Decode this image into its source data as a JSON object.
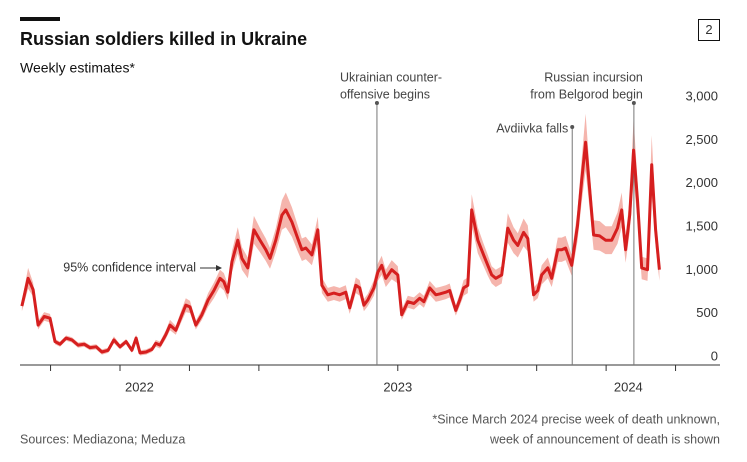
{
  "chart_data": {
    "type": "line",
    "title": "Russian soldiers killed in Ukraine",
    "subtitle": "Weekly estimates*",
    "badge": "2",
    "x": [
      2022.147,
      2022.169,
      2022.187,
      2022.205,
      2022.227,
      2022.248,
      2022.266,
      2022.284,
      2022.306,
      2022.327,
      2022.349,
      2022.371,
      2022.392,
      2022.414,
      2022.435,
      2022.457,
      2022.478,
      2022.5,
      2022.522,
      2022.543,
      2022.558,
      2022.572,
      2022.594,
      2022.615,
      2022.629,
      2022.644,
      2022.665,
      2022.68,
      2022.701,
      2022.723,
      2022.737,
      2022.752,
      2022.773,
      2022.795,
      2022.817,
      2022.838,
      2022.86,
      2022.874,
      2022.888,
      2022.903,
      2022.924,
      2022.939,
      2022.96,
      2022.982,
      2023.004,
      2023.025,
      2023.04,
      2023.061,
      2023.083,
      2023.097,
      2023.119,
      2023.14,
      2023.155,
      2023.169,
      2023.191,
      2023.212,
      2023.227,
      2023.248,
      2023.27,
      2023.291,
      2023.313,
      2023.327,
      2023.349,
      2023.363,
      2023.378,
      2023.392,
      2023.414,
      2023.428,
      2023.442,
      2023.457,
      2023.478,
      2023.5,
      2023.514,
      2023.536,
      2023.558,
      2023.579,
      2023.594,
      2023.615,
      2023.637,
      2023.651,
      2023.673,
      2023.687,
      2023.709,
      2023.723,
      2023.737,
      2023.752,
      2023.766,
      2023.788,
      2023.809,
      2023.824,
      2023.838,
      2023.853,
      2023.874,
      2023.896,
      2023.917,
      2023.932,
      2023.953,
      2023.968,
      2023.989,
      2024.004,
      2024.018,
      2024.04,
      2024.054,
      2024.076,
      2024.09,
      2024.104,
      2024.126,
      2024.147,
      2024.162,
      2024.176,
      2024.191,
      2024.205,
      2024.227,
      2024.248,
      2024.27,
      2024.291,
      2024.306,
      2024.32,
      2024.335,
      2024.349,
      2024.363,
      2024.378,
      2024.399,
      2024.414,
      2024.428,
      2024.442
    ],
    "xlim": [
      2022.14,
      2024.66
    ],
    "xticks": [
      2022,
      2023,
      2024
    ],
    "x_minor_ticks": [
      2022.25,
      2022.5,
      2022.75,
      2023,
      2023.25,
      2023.5,
      2023.75,
      2024,
      2024.25,
      2024.5
    ],
    "ylim": [
      0,
      3000
    ],
    "yticks": [
      0,
      500,
      {
        "value": 1000,
        "label": "1,000"
      },
      {
        "value": 1500,
        "label": "1,500"
      },
      {
        "value": 2000,
        "label": "2,000"
      },
      {
        "value": 2500,
        "label": "2,500"
      },
      {
        "value": 3000,
        "label": "3,000"
      }
    ],
    "series": [
      {
        "color": "#d61f1f",
        "values": [
          680,
          1000,
          870,
          460,
          560,
          540,
          270,
          240,
          310,
          290,
          230,
          240,
          200,
          210,
          150,
          170,
          290,
          210,
          270,
          170,
          310,
          140,
          150,
          180,
          250,
          230,
          350,
          460,
          400,
          580,
          690,
          670,
          460,
          580,
          750,
          860,
          1000,
          960,
          840,
          1190,
          1440,
          1230,
          1120,
          1560,
          1440,
          1330,
          1230,
          1440,
          1730,
          1790,
          1650,
          1460,
          1330,
          1350,
          1270,
          1560,
          920,
          810,
          830,
          810,
          840,
          660,
          920,
          890,
          690,
          750,
          890,
          1070,
          1150,
          1000,
          1100,
          1040,
          580,
          730,
          710,
          770,
          730,
          890,
          810,
          820,
          840,
          860,
          630,
          750,
          890,
          920,
          1790,
          1440,
          1270,
          1150,
          1040,
          1000,
          1040,
          1580,
          1440,
          1380,
          1530,
          1460,
          810,
          860,
          1040,
          1120,
          1000,
          1330,
          1330,
          1350,
          1150,
          1610,
          2130,
          2570,
          2020,
          1500,
          1490,
          1440,
          1440,
          1580,
          1790,
          1330,
          1730,
          2480,
          1900,
          1120,
          1100,
          2310,
          1560,
          1100
        ]
      }
    ],
    "band": {
      "name": "95% confidence interval",
      "color": "#f5b5ad",
      "margin": [
        60,
        120,
        80,
        50,
        50,
        50,
        30,
        30,
        30,
        30,
        30,
        30,
        30,
        30,
        30,
        30,
        40,
        30,
        30,
        30,
        40,
        30,
        30,
        30,
        40,
        40,
        50,
        60,
        50,
        70,
        80,
        70,
        50,
        60,
        80,
        90,
        100,
        100,
        90,
        120,
        150,
        130,
        120,
        160,
        140,
        130,
        120,
        140,
        170,
        200,
        170,
        150,
        130,
        130,
        120,
        150,
        90,
        80,
        80,
        80,
        80,
        70,
        90,
        90,
        70,
        70,
        90,
        100,
        110,
        100,
        110,
        100,
        60,
        70,
        70,
        70,
        70,
        80,
        80,
        80,
        80,
        80,
        60,
        70,
        90,
        90,
        180,
        150,
        130,
        120,
        100,
        100,
        100,
        170,
        150,
        140,
        160,
        150,
        80,
        90,
        110,
        120,
        100,
        140,
        140,
        140,
        120,
        180,
        250,
        330,
        230,
        170,
        170,
        160,
        160,
        180,
        200,
        150,
        200,
        360,
        230,
        130,
        130,
        340,
        190,
        130
      ]
    },
    "annotations": [
      {
        "text": [
          "Ukrainian counter-",
          "offensive begins"
        ],
        "x": 2023.425
      },
      {
        "text": [
          "Avdiivka falls"
        ],
        "x": 2024.128
      },
      {
        "text": [
          "Russian incursion",
          "from Belgorod begin"
        ],
        "x": 2024.35
      }
    ],
    "footnote": [
      "*Since March 2024 precise week of death unknown,",
      "week of announcement of death is shown"
    ],
    "source": "Sources: Mediazona; Meduza"
  }
}
